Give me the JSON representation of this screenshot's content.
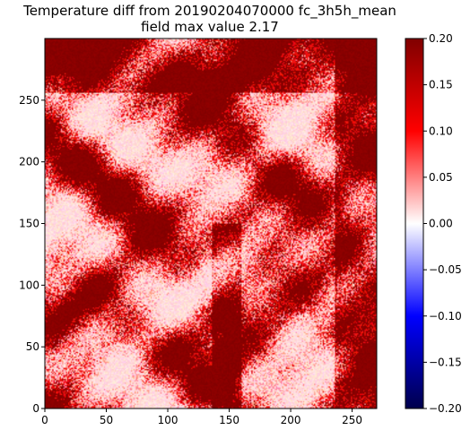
{
  "chart_data": {
    "type": "heatmap",
    "title_line1": "Temperature diff from 20190204070000 fc_3h5h_mean",
    "title_line2": "field max value 2.17",
    "x_ticks": [
      "0",
      "50",
      "100",
      "150",
      "200",
      "250"
    ],
    "y_ticks": [
      "0",
      "50",
      "100",
      "150",
      "200",
      "250"
    ],
    "xlim": [
      0,
      270
    ],
    "ylim": [
      0,
      300
    ],
    "colorbar": {
      "min": -0.2,
      "max": 0.2,
      "ticks": [
        "0.20",
        "0.15",
        "0.10",
        "0.05",
        "0.00",
        "−0.05",
        "−0.10",
        "−0.15",
        "−0.20"
      ],
      "colormap": "seismic",
      "colors": [
        "#00004c",
        "#0000ff",
        "#ffffff",
        "#ff0000",
        "#800000"
      ]
    },
    "value_summary": "most cells at or above 0.05, many saturated at 0.20",
    "x_grid_on": false,
    "y_grid_on": false
  }
}
